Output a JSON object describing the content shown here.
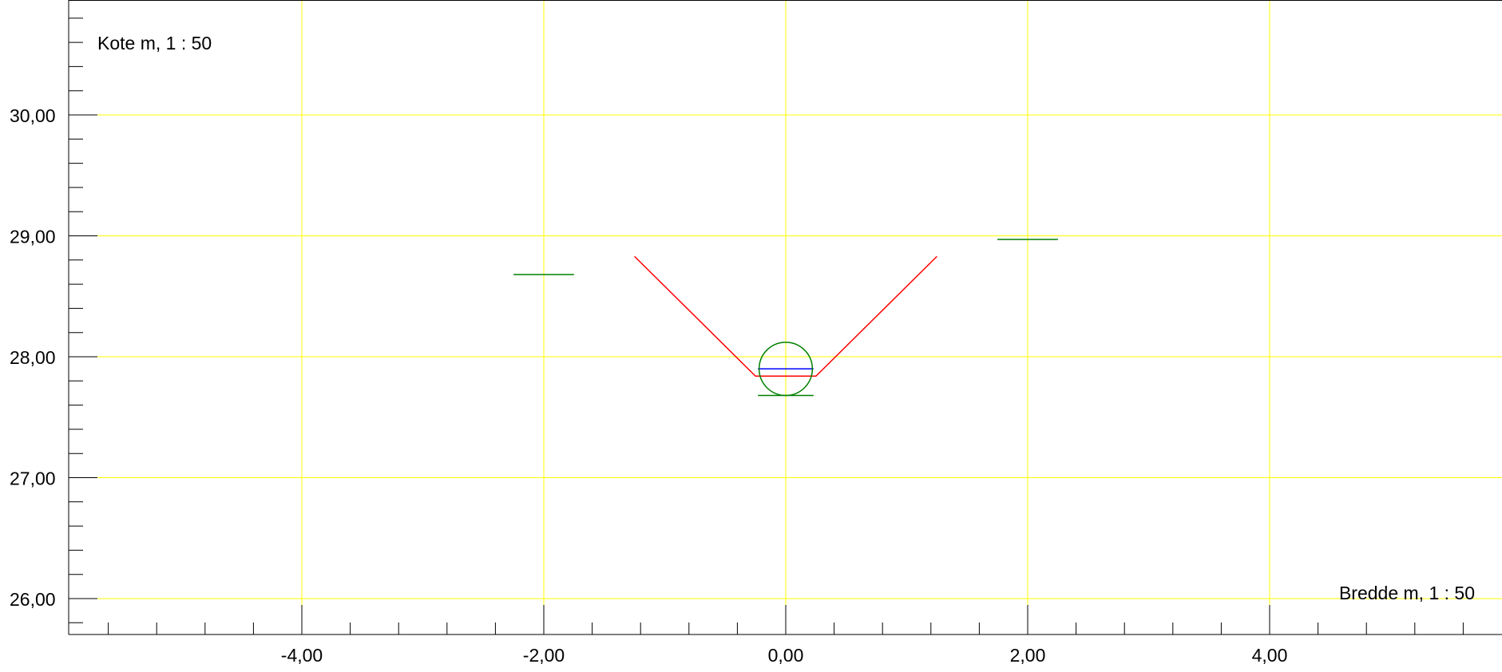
{
  "chart_data": {
    "type": "line",
    "title": "",
    "ylabel": "Kote m, 1 : 50",
    "xlabel": "Bredde m, 1 : 50",
    "xlim": [
      -5.9,
      5.9
    ],
    "ylim": [
      25.7,
      30.95
    ],
    "x_ticks": [
      -4,
      -2,
      0,
      2,
      4
    ],
    "x_tick_labels": [
      "-4,00",
      "-2,00",
      "0,00",
      "2,00",
      "4,00"
    ],
    "y_ticks": [
      26,
      27,
      28,
      29,
      30
    ],
    "y_tick_labels": [
      "26,00",
      "27,00",
      "28,00",
      "29,00",
      "30,00"
    ],
    "grid": true,
    "colors": {
      "grid": "#ffff00",
      "axis": "#000000",
      "trench": "#ff0000",
      "pipe": "#008000",
      "water": "#0000ff"
    },
    "series": [
      {
        "style": "trench",
        "x": [
          -1.25,
          -0.25,
          0.25,
          1.25
        ],
        "y": [
          28.83,
          27.84,
          27.84,
          28.83
        ]
      },
      {
        "style": "ground-left",
        "x": [
          -2.25,
          -1.75
        ],
        "y": [
          28.68,
          28.68
        ]
      },
      {
        "style": "ground-right",
        "x": [
          1.75,
          2.25
        ],
        "y": [
          28.97,
          28.97
        ]
      },
      {
        "style": "pipe-bottom",
        "x": [
          -0.23,
          0.23
        ],
        "y": [
          27.68,
          27.68
        ]
      },
      {
        "style": "water-level",
        "x": [
          -0.23,
          0.23
        ],
        "y": [
          27.9,
          27.9
        ]
      }
    ],
    "pipe_circle": {
      "cx": 0,
      "cy": 27.9,
      "r": 0.22
    }
  }
}
